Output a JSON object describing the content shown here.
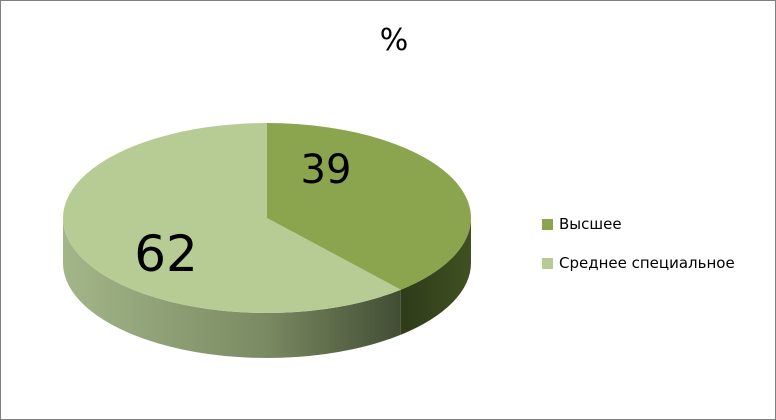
{
  "chart_data": {
    "type": "pie",
    "style": "3d",
    "title": "%",
    "categories": [
      "Высшее",
      "Среднее специальное"
    ],
    "values": [
      39,
      62
    ],
    "data_labels": [
      "39",
      "62"
    ],
    "colors": [
      "#8aa54e",
      "#b7cc94"
    ],
    "legend": "right"
  }
}
